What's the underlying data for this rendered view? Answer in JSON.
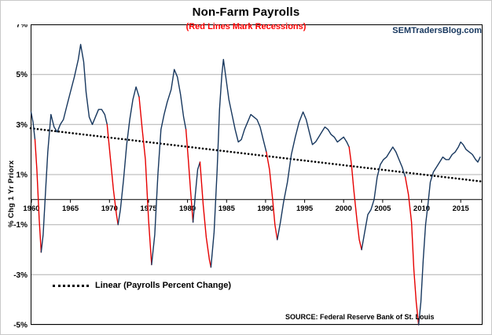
{
  "header": {
    "title": "Non-Farm Payrolls",
    "subtitle": "(Red Lines Mark Recessions)",
    "watermark": "SEMTradersBlog.com"
  },
  "legend": {
    "label": "Linear (Payrolls Percent Change)"
  },
  "source_note": "SOURCE: Federal Reserve Bank of St. Louis",
  "axes": {
    "ylabel": "% Chg 1 Yr Priorx"
  },
  "colors": {
    "line": "#17375e",
    "recession": "#e60000",
    "trend": "#000000",
    "subtitle": "#ff0000",
    "watermark": "#17375e",
    "grid": "#b0b0b0",
    "axis": "#000000"
  },
  "chart_data": {
    "type": "line",
    "title": "Non-Farm Payrolls",
    "subtitle": "(Red Lines Mark Recessions)",
    "xlabel": "",
    "ylabel": "% Chg 1 Yr Priorx",
    "xlim": [
      1959.9,
      2017.8
    ],
    "ylim": [
      -5,
      7
    ],
    "y_ticks": [
      7,
      5,
      3,
      1,
      -1,
      -3,
      -5
    ],
    "y_tick_suffix": "%",
    "x_ticks": [
      1960,
      1965,
      1970,
      1975,
      1980,
      1985,
      1990,
      1995,
      2000,
      2005,
      2010,
      2015
    ],
    "grid": true,
    "legend_position": "bottom-left-inside",
    "trend": {
      "name": "Linear (Payrolls Percent Change)",
      "x": [
        1959.9,
        2017.8
      ],
      "y": [
        2.85,
        0.72
      ],
      "style": "dotted"
    },
    "series_name": "Non-Farm Payrolls % Chg 1 Yr Prior",
    "segments": [
      {
        "recession": false,
        "points": [
          [
            1959.95,
            3.5
          ],
          [
            1960.2,
            3.1
          ],
          [
            1960.45,
            2.4
          ]
        ]
      },
      {
        "recession": true,
        "points": [
          [
            1960.45,
            2.4
          ],
          [
            1960.7,
            1.2
          ],
          [
            1961.0,
            -0.8
          ],
          [
            1961.25,
            -2.1
          ]
        ]
      },
      {
        "recession": false,
        "points": [
          [
            1961.25,
            -2.1
          ],
          [
            1961.5,
            -1.4
          ],
          [
            1961.8,
            0.3
          ],
          [
            1962.1,
            1.9
          ],
          [
            1962.5,
            3.4
          ],
          [
            1962.9,
            2.9
          ],
          [
            1963.3,
            2.7
          ],
          [
            1963.7,
            3.0
          ],
          [
            1964.1,
            3.2
          ],
          [
            1964.5,
            3.7
          ],
          [
            1965.0,
            4.3
          ],
          [
            1965.5,
            4.9
          ],
          [
            1966.0,
            5.6
          ],
          [
            1966.3,
            6.2
          ],
          [
            1966.7,
            5.5
          ],
          [
            1967.0,
            4.3
          ],
          [
            1967.4,
            3.3
          ],
          [
            1967.8,
            3.0
          ],
          [
            1968.2,
            3.3
          ],
          [
            1968.6,
            3.6
          ],
          [
            1969.0,
            3.6
          ],
          [
            1969.4,
            3.4
          ],
          [
            1969.7,
            3.0
          ]
        ]
      },
      {
        "recession": true,
        "points": [
          [
            1969.7,
            3.0
          ],
          [
            1970.1,
            1.7
          ],
          [
            1970.5,
            0.4
          ],
          [
            1970.9,
            -0.6
          ],
          [
            1971.1,
            -1.0
          ]
        ]
      },
      {
        "recession": false,
        "points": [
          [
            1971.1,
            -1.0
          ],
          [
            1971.4,
            -0.4
          ],
          [
            1971.8,
            0.8
          ],
          [
            1972.2,
            2.2
          ],
          [
            1972.6,
            3.2
          ],
          [
            1973.0,
            4.0
          ],
          [
            1973.4,
            4.5
          ],
          [
            1973.8,
            4.1
          ]
        ]
      },
      {
        "recession": true,
        "points": [
          [
            1973.8,
            4.1
          ],
          [
            1974.2,
            2.8
          ],
          [
            1974.6,
            1.6
          ],
          [
            1975.0,
            -0.8
          ],
          [
            1975.4,
            -2.6
          ]
        ]
      },
      {
        "recession": false,
        "points": [
          [
            1975.4,
            -2.6
          ],
          [
            1975.8,
            -1.4
          ],
          [
            1976.2,
            1.0
          ],
          [
            1976.6,
            2.8
          ],
          [
            1977.0,
            3.4
          ],
          [
            1977.4,
            3.9
          ],
          [
            1977.9,
            4.4
          ],
          [
            1978.3,
            5.2
          ],
          [
            1978.7,
            4.9
          ],
          [
            1979.1,
            4.2
          ],
          [
            1979.5,
            3.3
          ],
          [
            1979.8,
            2.8
          ]
        ]
      },
      {
        "recession": true,
        "points": [
          [
            1979.8,
            2.8
          ],
          [
            1980.1,
            1.6
          ],
          [
            1980.4,
            0.3
          ],
          [
            1980.7,
            -0.9
          ]
        ]
      },
      {
        "recession": false,
        "points": [
          [
            1980.7,
            -0.9
          ],
          [
            1981.0,
            0.2
          ],
          [
            1981.3,
            1.2
          ],
          [
            1981.6,
            1.5
          ]
        ]
      },
      {
        "recession": true,
        "points": [
          [
            1981.6,
            1.5
          ],
          [
            1982.0,
            -0.2
          ],
          [
            1982.4,
            -1.5
          ],
          [
            1982.8,
            -2.4
          ],
          [
            1983.0,
            -2.7
          ]
        ]
      },
      {
        "recession": false,
        "points": [
          [
            1983.0,
            -2.7
          ],
          [
            1983.4,
            -1.3
          ],
          [
            1983.8,
            1.2
          ],
          [
            1984.1,
            3.6
          ],
          [
            1984.4,
            5.0
          ],
          [
            1984.6,
            5.6
          ],
          [
            1984.9,
            4.9
          ],
          [
            1985.3,
            4.0
          ],
          [
            1985.7,
            3.4
          ],
          [
            1986.1,
            2.8
          ],
          [
            1986.5,
            2.3
          ],
          [
            1986.9,
            2.4
          ],
          [
            1987.3,
            2.8
          ],
          [
            1987.7,
            3.1
          ],
          [
            1988.1,
            3.4
          ],
          [
            1988.5,
            3.3
          ],
          [
            1988.9,
            3.2
          ],
          [
            1989.3,
            2.9
          ],
          [
            1989.7,
            2.4
          ],
          [
            1990.1,
            1.9
          ]
        ]
      },
      {
        "recession": true,
        "points": [
          [
            1990.1,
            1.9
          ],
          [
            1990.5,
            1.2
          ],
          [
            1990.9,
            0.0
          ],
          [
            1991.2,
            -1.0
          ],
          [
            1991.5,
            -1.6
          ]
        ]
      },
      {
        "recession": false,
        "points": [
          [
            1991.5,
            -1.6
          ],
          [
            1991.9,
            -0.9
          ],
          [
            1992.3,
            -0.1
          ],
          [
            1992.8,
            0.7
          ],
          [
            1993.3,
            1.8
          ],
          [
            1993.8,
            2.5
          ],
          [
            1994.3,
            3.1
          ],
          [
            1994.8,
            3.5
          ],
          [
            1995.2,
            3.2
          ],
          [
            1995.6,
            2.7
          ],
          [
            1996.0,
            2.2
          ],
          [
            1996.4,
            2.3
          ],
          [
            1996.8,
            2.5
          ],
          [
            1997.2,
            2.7
          ],
          [
            1997.6,
            2.9
          ],
          [
            1998.0,
            2.8
          ],
          [
            1998.4,
            2.6
          ],
          [
            1998.8,
            2.5
          ],
          [
            1999.2,
            2.3
          ],
          [
            1999.6,
            2.4
          ],
          [
            2000.0,
            2.5
          ],
          [
            2000.4,
            2.3
          ],
          [
            2000.7,
            2.1
          ]
        ]
      },
      {
        "recession": true,
        "points": [
          [
            2000.7,
            2.1
          ],
          [
            2001.0,
            1.4
          ],
          [
            2001.3,
            0.4
          ],
          [
            2001.7,
            -0.8
          ],
          [
            2002.0,
            -1.6
          ],
          [
            2002.3,
            -2.0
          ]
        ]
      },
      {
        "recession": false,
        "points": [
          [
            2002.3,
            -2.0
          ],
          [
            2002.7,
            -1.3
          ],
          [
            2003.1,
            -0.6
          ],
          [
            2003.5,
            -0.4
          ],
          [
            2003.9,
            0.0
          ],
          [
            2004.3,
            0.9
          ],
          [
            2004.7,
            1.4
          ],
          [
            2005.1,
            1.6
          ],
          [
            2005.5,
            1.7
          ],
          [
            2005.9,
            1.9
          ],
          [
            2006.3,
            2.1
          ],
          [
            2006.7,
            1.9
          ],
          [
            2007.1,
            1.6
          ],
          [
            2007.5,
            1.3
          ],
          [
            2007.9,
            0.9
          ]
        ]
      },
      {
        "recession": true,
        "points": [
          [
            2007.9,
            0.9
          ],
          [
            2008.3,
            0.2
          ],
          [
            2008.7,
            -0.9
          ],
          [
            2009.0,
            -2.8
          ],
          [
            2009.3,
            -4.1
          ],
          [
            2009.6,
            -5.0
          ]
        ]
      },
      {
        "recession": false,
        "points": [
          [
            2009.6,
            -5.0
          ],
          [
            2009.9,
            -4.1
          ],
          [
            2010.2,
            -2.4
          ],
          [
            2010.5,
            -1.0
          ],
          [
            2010.8,
            -0.2
          ],
          [
            2011.1,
            0.7
          ],
          [
            2011.5,
            1.1
          ],
          [
            2011.9,
            1.3
          ],
          [
            2012.3,
            1.5
          ],
          [
            2012.7,
            1.7
          ],
          [
            2013.1,
            1.6
          ],
          [
            2013.5,
            1.6
          ],
          [
            2013.9,
            1.8
          ],
          [
            2014.3,
            1.9
          ],
          [
            2014.7,
            2.1
          ],
          [
            2015.0,
            2.3
          ],
          [
            2015.3,
            2.2
          ],
          [
            2015.7,
            2.0
          ],
          [
            2016.1,
            1.9
          ],
          [
            2016.5,
            1.8
          ],
          [
            2016.9,
            1.6
          ],
          [
            2017.2,
            1.5
          ],
          [
            2017.5,
            1.7
          ]
        ]
      }
    ]
  }
}
